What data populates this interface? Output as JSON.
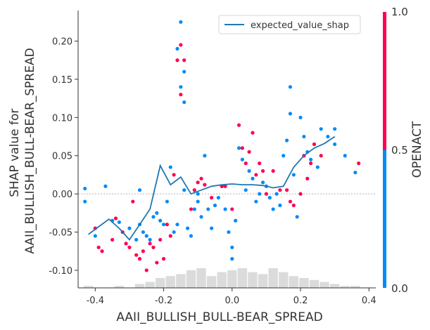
{
  "chart_data": {
    "type": "scatter",
    "title": "",
    "xlabel": "AAII_BULLISH_BULL-BEAR_SPREAD",
    "ylabel": "SHAP value for\nAAII_BULLISH_BULL-BEAR_SPREAD",
    "xlim": [
      -0.45,
      0.42
    ],
    "ylim": [
      -0.123,
      0.24
    ],
    "xticks": [
      "-0.4",
      "-0.2",
      "0.0",
      "0.2",
      "0.4"
    ],
    "yticks": [
      "-0.10",
      "-0.05",
      "0.00",
      "0.05",
      "0.10",
      "0.15",
      "0.20"
    ],
    "colorbar": {
      "label": "OPENACT",
      "ticks": [
        "0.0",
        "0.5",
        "1.0"
      ],
      "low_color": "#008bfb",
      "high_color": "#ff0051"
    },
    "zero_line": 0.0,
    "legend": {
      "position": "top-right",
      "entries": [
        "expected_value_shap"
      ]
    },
    "series": [
      {
        "name": "expected_value_shap",
        "type": "line",
        "color": "#1f77b4",
        "x": [
          -0.42,
          -0.39,
          -0.36,
          -0.33,
          -0.3,
          -0.27,
          -0.24,
          -0.21,
          -0.18,
          -0.15,
          -0.12,
          -0.09,
          -0.06,
          -0.03,
          0.0,
          0.03,
          0.06,
          0.09,
          0.12,
          0.15,
          0.18,
          0.21,
          0.24,
          0.27,
          0.3
        ],
        "y": [
          -0.053,
          -0.043,
          -0.033,
          -0.045,
          -0.06,
          -0.04,
          -0.02,
          0.037,
          0.012,
          0.022,
          0.0,
          0.005,
          0.01,
          0.012,
          0.013,
          0.012,
          0.012,
          0.011,
          0.008,
          0.01,
          0.035,
          0.05,
          0.06,
          0.066,
          0.075
        ]
      }
    ],
    "points_blue": [
      [
        -0.43,
        0.007
      ],
      [
        -0.43,
        -0.01
      ],
      [
        -0.4,
        -0.055
      ],
      [
        -0.37,
        0.01
      ],
      [
        -0.35,
        -0.035
      ],
      [
        -0.33,
        -0.037
      ],
      [
        -0.3,
        -0.045
      ],
      [
        -0.28,
        -0.06
      ],
      [
        -0.27,
        0.005
      ],
      [
        -0.27,
        -0.04
      ],
      [
        -0.26,
        -0.05
      ],
      [
        -0.25,
        -0.055
      ],
      [
        -0.24,
        -0.06
      ],
      [
        -0.23,
        -0.03
      ],
      [
        -0.22,
        -0.025
      ],
      [
        -0.21,
        -0.035
      ],
      [
        -0.2,
        -0.04
      ],
      [
        -0.19,
        -0.01
      ],
      [
        -0.18,
        0.035
      ],
      [
        -0.17,
        -0.05
      ],
      [
        -0.16,
        -0.04
      ],
      [
        -0.16,
        0.19
      ],
      [
        -0.15,
        0.225
      ],
      [
        -0.15,
        0.14
      ],
      [
        -0.14,
        0.12
      ],
      [
        -0.14,
        0.16
      ],
      [
        -0.14,
        0.005
      ],
      [
        -0.13,
        -0.045
      ],
      [
        -0.12,
        -0.055
      ],
      [
        -0.11,
        -0.02
      ],
      [
        -0.1,
        0.0
      ],
      [
        -0.1,
        -0.01
      ],
      [
        -0.09,
        -0.03
      ],
      [
        -0.08,
        0.05
      ],
      [
        -0.07,
        -0.02
      ],
      [
        -0.06,
        -0.045
      ],
      [
        -0.05,
        -0.015
      ],
      [
        -0.04,
        -0.005
      ],
      [
        -0.03,
        0.01
      ],
      [
        -0.02,
        -0.02
      ],
      [
        -0.01,
        -0.05
      ],
      [
        0.0,
        -0.07
      ],
      [
        0.0,
        -0.085
      ],
      [
        0.01,
        -0.035
      ],
      [
        0.02,
        0.06
      ],
      [
        0.03,
        0.045
      ],
      [
        0.04,
        0.005
      ],
      [
        0.05,
        0.03
      ],
      [
        0.06,
        0.02
      ],
      [
        0.07,
        -0.01
      ],
      [
        0.08,
        0.0
      ],
      [
        0.09,
        0.015
      ],
      [
        0.1,
        0.01
      ],
      [
        0.11,
        -0.005
      ],
      [
        0.12,
        -0.02
      ],
      [
        0.13,
        0.0
      ],
      [
        0.14,
        -0.015
      ],
      [
        0.15,
        0.05
      ],
      [
        0.16,
        0.07
      ],
      [
        0.17,
        0.105
      ],
      [
        0.17,
        0.14
      ],
      [
        0.18,
        0.025
      ],
      [
        0.19,
        -0.03
      ],
      [
        0.2,
        0.1
      ],
      [
        0.21,
        0.075
      ],
      [
        0.22,
        0.055
      ],
      [
        0.23,
        0.045
      ],
      [
        0.24,
        0.065
      ],
      [
        0.25,
        0.035
      ],
      [
        0.26,
        0.085
      ],
      [
        0.28,
        0.075
      ],
      [
        0.3,
        0.085
      ],
      [
        0.3,
        0.065
      ],
      [
        0.33,
        0.05
      ],
      [
        0.36,
        0.028
      ]
    ],
    "points_red": [
      [
        -0.4,
        -0.045
      ],
      [
        -0.39,
        -0.07
      ],
      [
        -0.38,
        -0.075
      ],
      [
        -0.35,
        -0.06
      ],
      [
        -0.34,
        -0.032
      ],
      [
        -0.32,
        -0.05
      ],
      [
        -0.31,
        -0.065
      ],
      [
        -0.3,
        -0.07
      ],
      [
        -0.29,
        -0.01
      ],
      [
        -0.28,
        -0.08
      ],
      [
        -0.27,
        -0.085
      ],
      [
        -0.26,
        -0.075
      ],
      [
        -0.25,
        -0.1
      ],
      [
        -0.24,
        -0.065
      ],
      [
        -0.23,
        -0.07
      ],
      [
        -0.22,
        -0.09
      ],
      [
        -0.21,
        -0.06
      ],
      [
        -0.2,
        -0.085
      ],
      [
        -0.19,
        -0.04
      ],
      [
        -0.18,
        -0.055
      ],
      [
        -0.17,
        0.025
      ],
      [
        -0.16,
        0.175
      ],
      [
        -0.15,
        0.195
      ],
      [
        -0.15,
        0.13
      ],
      [
        -0.14,
        0.175
      ],
      [
        -0.12,
        -0.02
      ],
      [
        -0.11,
        0.005
      ],
      [
        -0.1,
        0.015
      ],
      [
        -0.09,
        0.02
      ],
      [
        -0.08,
        0.012
      ],
      [
        -0.06,
        -0.005
      ],
      [
        -0.03,
        0.01
      ],
      [
        -0.02,
        0.01
      ],
      [
        0.0,
        -0.02
      ],
      [
        0.02,
        0.09
      ],
      [
        0.03,
        0.06
      ],
      [
        0.04,
        0.04
      ],
      [
        0.05,
        0.055
      ],
      [
        0.06,
        0.08
      ],
      [
        0.07,
        0.025
      ],
      [
        0.08,
        0.04
      ],
      [
        0.09,
        0.03
      ],
      [
        0.1,
        0.0
      ],
      [
        0.12,
        0.03
      ],
      [
        0.14,
        0.005
      ],
      [
        0.16,
        0.005
      ],
      [
        0.17,
        -0.01
      ],
      [
        0.18,
        -0.015
      ],
      [
        0.2,
        0.0
      ],
      [
        0.21,
        0.05
      ],
      [
        0.22,
        0.02
      ],
      [
        0.23,
        0.04
      ],
      [
        0.24,
        0.065
      ],
      [
        0.26,
        0.05
      ],
      [
        0.37,
        0.04
      ]
    ],
    "histogram": {
      "color": "#cccccc",
      "x": [
        -0.42,
        -0.39,
        -0.36,
        -0.33,
        -0.3,
        -0.27,
        -0.24,
        -0.21,
        -0.18,
        -0.15,
        -0.12,
        -0.09,
        -0.06,
        -0.03,
        0.0,
        0.03,
        0.06,
        0.09,
        0.12,
        0.15,
        0.18,
        0.21,
        0.24,
        0.27,
        0.3,
        0.33,
        0.36
      ],
      "counts": [
        1,
        0,
        0,
        1,
        0,
        2,
        3,
        5,
        6,
        7,
        9,
        10,
        6,
        8,
        9,
        10,
        8,
        7,
        10,
        8,
        6,
        5,
        4,
        3,
        2,
        1,
        1
      ]
    }
  }
}
